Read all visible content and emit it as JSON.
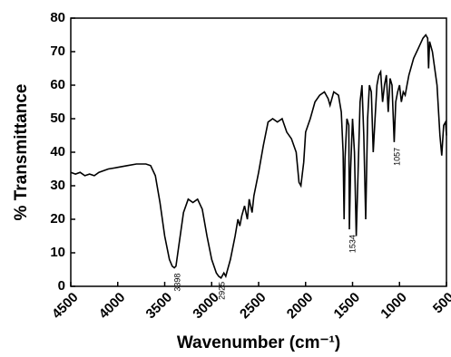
{
  "chart_data": {
    "type": "line",
    "xlabel": "Wavenumber (cm⁻¹)",
    "ylabel": "% Transmittance",
    "xlim": [
      4500,
      500
    ],
    "ylim": [
      0,
      80
    ],
    "xticks": [
      4500,
      4000,
      3500,
      3000,
      2500,
      2000,
      1500,
      1000,
      500
    ],
    "yticks": [
      0,
      10,
      20,
      30,
      40,
      50,
      60,
      70,
      80
    ],
    "annotations": [
      3398,
      2925,
      1534,
      1057
    ],
    "series": [
      {
        "color": "#000000",
        "x": [
          4500,
          4450,
          4400,
          4350,
          4300,
          4250,
          4200,
          4100,
          4000,
          3900,
          3800,
          3700,
          3650,
          3600,
          3550,
          3500,
          3450,
          3420,
          3398,
          3380,
          3350,
          3300,
          3250,
          3200,
          3150,
          3100,
          3050,
          3000,
          2950,
          2925,
          2900,
          2870,
          2850,
          2800,
          2750,
          2720,
          2700,
          2680,
          2650,
          2620,
          2600,
          2570,
          2550,
          2500,
          2450,
          2400,
          2350,
          2300,
          2250,
          2200,
          2150,
          2100,
          2070,
          2050,
          2020,
          2000,
          1950,
          1900,
          1850,
          1800,
          1760,
          1740,
          1700,
          1650,
          1620,
          1600,
          1590,
          1580,
          1560,
          1540,
          1534,
          1520,
          1500,
          1480,
          1460,
          1440,
          1420,
          1400,
          1380,
          1360,
          1340,
          1320,
          1300,
          1280,
          1260,
          1240,
          1220,
          1200,
          1180,
          1160,
          1140,
          1120,
          1100,
          1080,
          1057,
          1040,
          1020,
          1000,
          980,
          960,
          940,
          920,
          900,
          850,
          800,
          750,
          720,
          700,
          690,
          680,
          650,
          600,
          570,
          550,
          530,
          510,
          500
        ],
        "values": [
          34,
          33.5,
          34,
          33,
          33.5,
          33,
          34,
          35,
          35.5,
          36,
          36.5,
          36.5,
          36,
          33,
          25,
          15,
          8,
          6,
          5.5,
          6,
          12,
          22,
          26,
          25,
          26,
          23,
          15,
          8,
          4,
          3,
          2.5,
          4,
          3,
          8,
          15,
          20,
          18,
          21,
          24,
          20,
          26,
          22,
          27,
          34,
          42,
          49,
          50,
          49,
          50,
          46,
          44,
          40,
          31,
          30,
          37,
          46,
          50,
          55,
          57,
          58,
          56,
          54,
          58,
          57,
          52,
          40,
          20,
          38,
          50,
          48,
          17,
          35,
          50,
          40,
          15,
          35,
          55,
          60,
          45,
          20,
          50,
          60,
          58,
          40,
          50,
          60,
          63,
          64,
          55,
          60,
          63,
          52,
          62,
          60,
          43,
          55,
          58,
          60,
          55,
          58,
          57,
          60,
          63,
          68,
          71,
          74,
          75,
          74,
          65,
          73,
          70,
          60,
          45,
          39,
          48,
          49,
          45
        ]
      }
    ]
  }
}
